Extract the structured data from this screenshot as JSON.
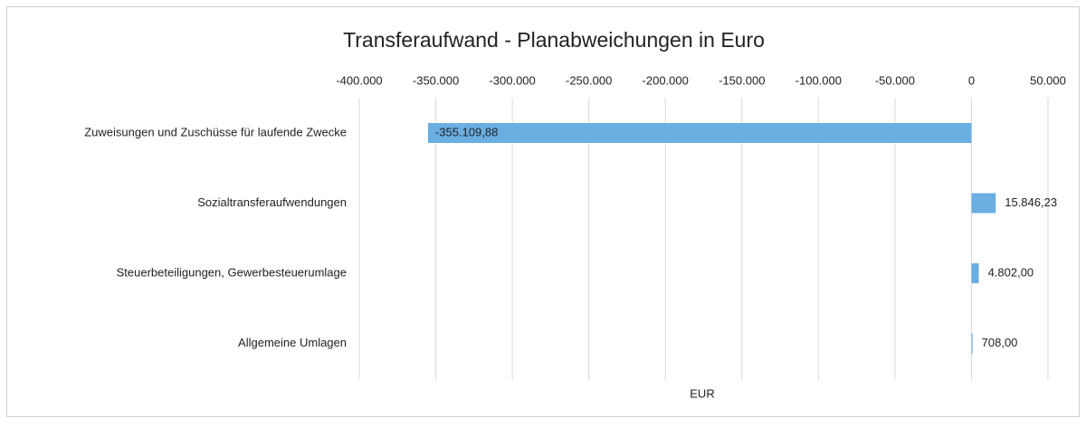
{
  "chart_data": {
    "type": "bar",
    "orientation": "horizontal",
    "title": "Transferaufwand - Planabweichungen in Euro",
    "x_label": "EUR",
    "categories": [
      "Zuweisungen und Zuschüsse für laufende Zwecke",
      "Sozialtransferaufwendungen",
      "Steuerbeteiligungen, Gewerbesteuerumlage",
      "Allgemeine Umlagen"
    ],
    "values": [
      -355109.88,
      15846.23,
      4802,
      708
    ],
    "value_labels": [
      "-355.109,88",
      "15.846,23",
      "4.802,00",
      "708,00"
    ],
    "color": "#6aaee2",
    "xlim": [
      -400000,
      50000
    ],
    "xticks": [
      {
        "value": -400000,
        "label": "-400.000"
      },
      {
        "value": -350000,
        "label": "-350.000"
      },
      {
        "value": -300000,
        "label": "-300.000"
      },
      {
        "value": -250000,
        "label": "-250.000"
      },
      {
        "value": -200000,
        "label": "-200.000"
      },
      {
        "value": -150000,
        "label": "-150.000"
      },
      {
        "value": -100000,
        "label": "-100.000"
      },
      {
        "value": -50000,
        "label": "-50.000"
      },
      0,
      {
        "value": 50000,
        "label": "50.000"
      }
    ],
    "grid": true
  }
}
